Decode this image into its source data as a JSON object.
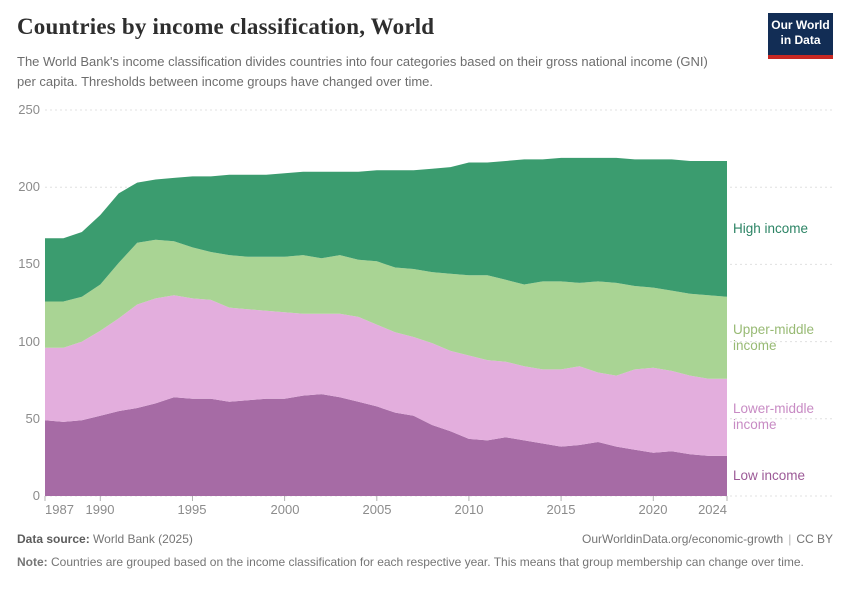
{
  "header": {
    "title": "Countries by income classification, World",
    "subtitle": "The World Bank's income classification divides countries into four categories based on their gross national income (GNI) per capita. Thresholds between income groups have changed over time.",
    "logo": {
      "line1": "Our World",
      "line2": "in Data"
    }
  },
  "chart_data": {
    "type": "area",
    "stacked": true,
    "title": "Countries by income classification, World",
    "xlabel": "",
    "ylabel": "",
    "ylim": [
      0,
      250
    ],
    "grid": "horizontal-dashed",
    "legend_position": "right",
    "x": [
      1987,
      1988,
      1989,
      1990,
      1991,
      1992,
      1993,
      1994,
      1995,
      1996,
      1997,
      1998,
      1999,
      2000,
      2001,
      2002,
      2003,
      2004,
      2005,
      2006,
      2007,
      2008,
      2009,
      2010,
      2011,
      2012,
      2013,
      2014,
      2015,
      2016,
      2017,
      2018,
      2019,
      2020,
      2021,
      2022,
      2023,
      2024
    ],
    "x_ticks": [
      1987,
      1990,
      1995,
      2000,
      2005,
      2010,
      2015,
      2020,
      2024
    ],
    "y_ticks": [
      0,
      50,
      100,
      150,
      200,
      250
    ],
    "series": [
      {
        "name": "Low income",
        "color": "#a66ba5",
        "label_color": "#9c5a97",
        "values": [
          49,
          48,
          49,
          52,
          55,
          57,
          60,
          64,
          63,
          63,
          61,
          62,
          63,
          63,
          65,
          66,
          64,
          61,
          58,
          54,
          52,
          46,
          42,
          37,
          36,
          38,
          36,
          34,
          32,
          33,
          35,
          32,
          30,
          28,
          29,
          27,
          26,
          26
        ]
      },
      {
        "name": "Lower-middle income",
        "color": "#e3aedd",
        "label_color": "#c88bc4",
        "values": [
          47,
          48,
          51,
          55,
          60,
          67,
          68,
          66,
          65,
          64,
          61,
          59,
          57,
          56,
          53,
          52,
          54,
          55,
          53,
          52,
          51,
          53,
          52,
          54,
          52,
          49,
          48,
          48,
          50,
          51,
          45,
          46,
          52,
          55,
          52,
          51,
          50,
          50
        ]
      },
      {
        "name": "Upper-middle income",
        "color": "#a9d494",
        "label_color": "#98ba74",
        "values": [
          30,
          30,
          29,
          30,
          36,
          40,
          38,
          35,
          33,
          31,
          34,
          34,
          35,
          36,
          38,
          36,
          38,
          37,
          41,
          42,
          44,
          46,
          50,
          52,
          55,
          53,
          53,
          57,
          57,
          54,
          59,
          60,
          54,
          52,
          52,
          53,
          54,
          53
        ]
      },
      {
        "name": "High income",
        "color": "#3b9c6f",
        "label_color": "#2c8465",
        "values": [
          41,
          41,
          42,
          45,
          45,
          39,
          39,
          41,
          46,
          49,
          52,
          53,
          53,
          54,
          54,
          56,
          54,
          57,
          59,
          63,
          64,
          67,
          69,
          73,
          73,
          77,
          81,
          79,
          80,
          81,
          80,
          81,
          82,
          83,
          85,
          86,
          87,
          88
        ]
      }
    ]
  },
  "footer": {
    "data_source_label": "Data source:",
    "data_source_value": "World Bank (2025)",
    "url_label": "OurWorldinData.org/economic-growth",
    "separator": "|",
    "license_label": "CC BY",
    "note_label": "Note:",
    "note_text": "Countries are grouped based on the income classification for each respective year. This means that group membership can change over time."
  }
}
